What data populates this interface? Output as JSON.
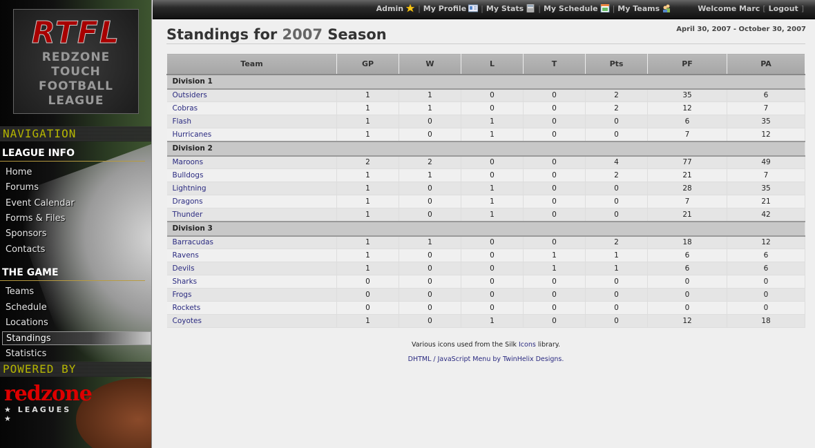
{
  "sidebar": {
    "logo": {
      "abbr": "RTFL",
      "lines": [
        "REDZONE",
        "TOUCH",
        "FOOTBALL",
        "LEAGUE"
      ]
    },
    "nav_label": "NAVIGATION",
    "sections": [
      {
        "title": "LEAGUE INFO",
        "items": [
          "Home",
          "Forums",
          "Event Calendar",
          "Forms & Files",
          "Sponsors",
          "Contacts"
        ]
      },
      {
        "title": "THE GAME",
        "items": [
          "Teams",
          "Schedule",
          "Locations",
          "Standings",
          "Statistics"
        ]
      }
    ],
    "selected": "Standings",
    "powered_label": "POWERED BY",
    "powered_logo": {
      "name": "redzone",
      "sub": "★ LEAGUES ★"
    }
  },
  "topbar": {
    "links": [
      {
        "label": "Admin",
        "icon": "star-icon"
      },
      {
        "label": "My Profile",
        "icon": "id-card-icon"
      },
      {
        "label": "My Stats",
        "icon": "calculator-icon"
      },
      {
        "label": "My Schedule",
        "icon": "calendar-icon"
      },
      {
        "label": "My Teams",
        "icon": "users-icon"
      }
    ],
    "welcome": "Welcome Marc",
    "logout": "Logout"
  },
  "page": {
    "title_pre": "Standings for ",
    "year": "2007",
    "title_post": " Season",
    "date_range": "April 30, 2007 - October 30, 2007"
  },
  "table": {
    "columns": [
      "Team",
      "GP",
      "W",
      "L",
      "T",
      "Pts",
      "PF",
      "PA"
    ],
    "divisions": [
      {
        "name": "Division 1",
        "rows": [
          [
            "Outsiders",
            1,
            1,
            0,
            0,
            2,
            35,
            6
          ],
          [
            "Cobras",
            1,
            1,
            0,
            0,
            2,
            12,
            7
          ],
          [
            "Flash",
            1,
            0,
            1,
            0,
            0,
            6,
            35
          ],
          [
            "Hurricanes",
            1,
            0,
            1,
            0,
            0,
            7,
            12
          ]
        ]
      },
      {
        "name": "Division 2",
        "rows": [
          [
            "Maroons",
            2,
            2,
            0,
            0,
            4,
            77,
            49
          ],
          [
            "Bulldogs",
            1,
            1,
            0,
            0,
            2,
            21,
            7
          ],
          [
            "Lightning",
            1,
            0,
            1,
            0,
            0,
            28,
            35
          ],
          [
            "Dragons",
            1,
            0,
            1,
            0,
            0,
            7,
            21
          ],
          [
            "Thunder",
            1,
            0,
            1,
            0,
            0,
            21,
            42
          ]
        ]
      },
      {
        "name": "Division 3",
        "rows": [
          [
            "Barracudas",
            1,
            1,
            0,
            0,
            2,
            18,
            12
          ],
          [
            "Ravens",
            1,
            0,
            0,
            1,
            1,
            6,
            6
          ],
          [
            "Devils",
            1,
            0,
            0,
            1,
            1,
            6,
            6
          ],
          [
            "Sharks",
            0,
            0,
            0,
            0,
            0,
            0,
            0
          ],
          [
            "Frogs",
            0,
            0,
            0,
            0,
            0,
            0,
            0
          ],
          [
            "Rockets",
            0,
            0,
            0,
            0,
            0,
            0,
            0
          ],
          [
            "Coyotes",
            1,
            0,
            1,
            0,
            0,
            12,
            18
          ]
        ]
      }
    ]
  },
  "footer": {
    "line1_pre": "Various icons used from the Silk ",
    "line1_link": "Icons",
    "line1_post": " library.",
    "line2": "DHTML / JavaScript Menu by TwinHelix Designs."
  },
  "colors": {
    "link": "#2a2a80",
    "led": "#c8c800",
    "brand_red": "#a80000"
  }
}
